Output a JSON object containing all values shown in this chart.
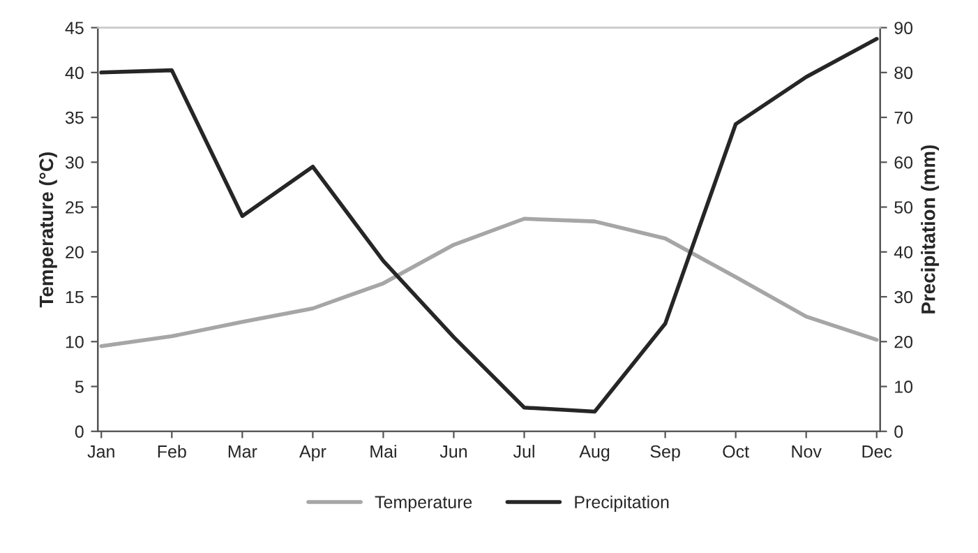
{
  "chart_data": {
    "type": "line",
    "categories": [
      "Jan",
      "Feb",
      "Mar",
      "Apr",
      "Mai",
      "Jun",
      "Jul",
      "Aug",
      "Sep",
      "Oct",
      "Nov",
      "Dec"
    ],
    "series": [
      {
        "name": "Temperature",
        "color": "#a6a6a6",
        "values": [
          9.5,
          10.6,
          12.2,
          13.7,
          16.5,
          20.8,
          23.7,
          23.4,
          21.5,
          17.2,
          12.8,
          10.2
        ]
      },
      {
        "name": "Precipitation",
        "color": "#262626",
        "axis": "y2",
        "values": [
          80,
          80.5,
          48,
          59,
          38,
          21,
          5.3,
          4.4,
          24,
          68.5,
          79,
          87.5
        ]
      }
    ],
    "ylabel": "Temperature (°C)",
    "y2label": "Precipitation (mm)",
    "ylim": [
      0,
      45
    ],
    "yticks": [
      0,
      5,
      10,
      15,
      20,
      25,
      30,
      35,
      40,
      45
    ],
    "y2lim": [
      0,
      90
    ],
    "y2ticks": [
      0,
      10,
      20,
      30,
      40,
      50,
      60,
      70,
      80,
      90
    ],
    "legend": "bottom",
    "grid": false,
    "marker": "none",
    "line_style": "solid"
  }
}
